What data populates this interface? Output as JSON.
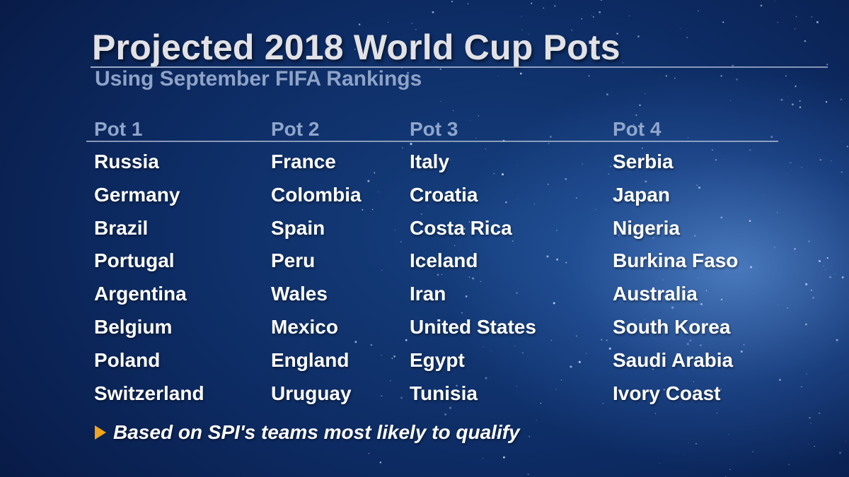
{
  "title": "Projected 2018 World Cup Pots",
  "subtitle": "Using September FIFA Rankings",
  "pots": [
    {
      "label": "Pot 1",
      "teams": [
        "Russia",
        "Germany",
        "Brazil",
        "Portugal",
        "Argentina",
        "Belgium",
        "Poland",
        "Switzerland"
      ]
    },
    {
      "label": "Pot 2",
      "teams": [
        "France",
        "Colombia",
        "Spain",
        "Peru",
        "Wales",
        "Mexico",
        "England",
        "Uruguay"
      ]
    },
    {
      "label": "Pot 3",
      "teams": [
        "Italy",
        "Croatia",
        "Costa Rica",
        "Iceland",
        "Iran",
        "United States",
        "Egypt",
        "Tunisia"
      ]
    },
    {
      "label": "Pot 4",
      "teams": [
        "Serbia",
        "Japan",
        "Nigeria",
        "Burkina Faso",
        "Australia",
        "South Korea",
        "Saudi Arabia",
        "Ivory Coast"
      ]
    }
  ],
  "footnote": {
    "icon": "triangle-right-icon",
    "text": "Based on SPI's teams most likely to qualify"
  },
  "colors": {
    "title": "#e2e2e6",
    "subtitle": "#8ea3c7",
    "pot_header": "#8fa6cc",
    "team": "#ffffff",
    "accent": "#f2a51c",
    "background": "#0d2b63"
  }
}
